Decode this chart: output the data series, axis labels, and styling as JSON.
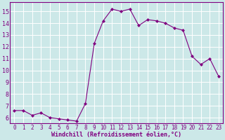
{
  "x": [
    0,
    1,
    2,
    3,
    4,
    5,
    6,
    7,
    8,
    9,
    10,
    11,
    12,
    13,
    14,
    15,
    16,
    17,
    18,
    19,
    20,
    21,
    22,
    23
  ],
  "y": [
    6.6,
    6.6,
    6.2,
    6.4,
    6.0,
    5.9,
    5.8,
    5.7,
    7.2,
    12.3,
    14.2,
    15.2,
    15.0,
    15.2,
    13.8,
    14.3,
    14.2,
    14.0,
    13.6,
    13.4,
    11.2,
    10.5,
    11.0,
    9.5
  ],
  "line_color": "#800080",
  "marker": "D",
  "marker_size": 2.0,
  "bg_color": "#cce8e8",
  "grid_color": "#ffffff",
  "xlabel": "Windchill (Refroidissement éolien,°C)",
  "xlabel_color": "#800080",
  "tick_color": "#800080",
  "ylim": [
    5.5,
    15.8
  ],
  "xlim": [
    -0.5,
    23.5
  ],
  "yticks": [
    6,
    7,
    8,
    9,
    10,
    11,
    12,
    13,
    14,
    15
  ],
  "xticks": [
    0,
    1,
    2,
    3,
    4,
    5,
    6,
    7,
    8,
    9,
    10,
    11,
    12,
    13,
    14,
    15,
    16,
    17,
    18,
    19,
    20,
    21,
    22,
    23
  ],
  "spine_color": "#800080",
  "linewidth": 0.8,
  "xlabel_fontsize": 6.0,
  "tick_fontsize": 5.5
}
